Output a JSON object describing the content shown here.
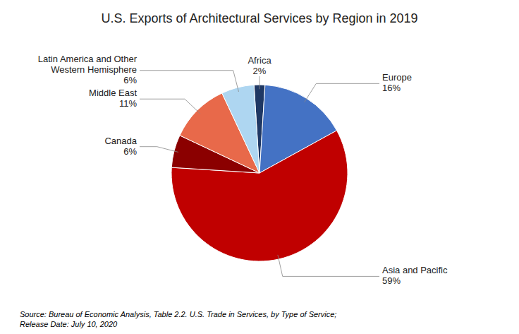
{
  "chart_data": {
    "type": "pie",
    "title": "U.S. Exports of Architectural Services by Region in 2019",
    "categories": [
      "Africa",
      "Europe",
      "Asia and Pacific",
      "Canada",
      "Middle East",
      "Latin America and Other\nWestern Hemisphere"
    ],
    "values": [
      2,
      16,
      59,
      6,
      11,
      6
    ],
    "value_labels": [
      "2%",
      "16%",
      "59%",
      "6%",
      "11%",
      "6%"
    ],
    "data_labels": true,
    "colors": [
      "#1F3864",
      "#4472C4",
      "#C00000",
      "#8B0000",
      "#E8694A",
      "#AED6F1"
    ],
    "source": "Source: Bureau of Economic Analysis, Table 2.2. U.S. Trade in Services, by Type of Service;\nRelease Date: July 10, 2020"
  }
}
